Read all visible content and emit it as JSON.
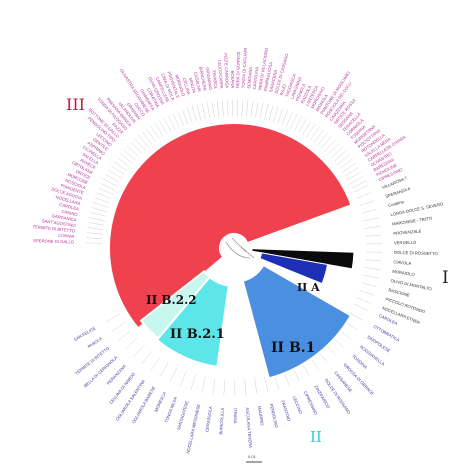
{
  "clades": {
    "III": {
      "label": "III",
      "color": "#c41e3a"
    },
    "I": {
      "label": "I",
      "color": "#222222"
    },
    "II": {
      "label": "II",
      "color": "#3fc6d0"
    },
    "IIA": {
      "label": "II A",
      "color": "#1a2a8a"
    },
    "IIB1": {
      "label": "II B.1",
      "color": "#4a8fe0"
    },
    "IIB21": {
      "label": "II B.2.1",
      "color": "#5de6ea"
    },
    "IIB22": {
      "label": "II B.2.2",
      "color": "#c7f7ee"
    },
    "red_fill": "#f0424e",
    "black_fill": "#0a0a0a",
    "blue_dark_fill": "#1c2fb5"
  },
  "leaf_labels": {
    "I": [
      "VILLAROSA 7",
      "SPERANZA 6",
      "Coratina",
      "LONGA DOLCE S. SEVERO",
      "MARCHESE - TRITTI",
      "PROVENZALE",
      "VERDELLO",
      "DOLCE DI ROSSETTO",
      "CIAVOLA",
      "MORAIOLO",
      "OLIVO DI MONTALTO",
      "RASCIONE",
      "PICCOLO ROTONDO",
      "NOCELLARA ETNEA"
    ],
    "II": [
      "CAROLEA",
      "OTTOBRATICA",
      "SINOPOLESE",
      "ROGGIANELLA",
      "TONDINA",
      "GROSSA DI GERACE",
      "CASSANESE",
      "DOLCE DI ROSSANO",
      "ZINZIFARICO",
      "CIPRESSINO",
      "LECCINO",
      "FRANTOIO",
      "PENDOLINO",
      "MAURINO",
      "ASCOLANA TENERA",
      "ITRANA",
      "BIANCOLILLA",
      "CERASUOLA",
      "NOCELLARA MESSINESE",
      "SANTAGATESE",
      "TONDA IBLEA",
      "MORESCA",
      "OGLIAROLA BARESE",
      "OGLIAROLA SALENTINA",
      "CELLINA DI NARDO",
      "PERANZANA",
      "BELLA DI CERIGNOLA",
      "TERMITE DI BITETTO",
      "PASOLA",
      "SAN FELICE"
    ],
    "III": [
      "SPERONE DI GALLO",
      "CORNIA",
      "TERMITE DI BITETTO",
      "SANT'AGOSTINO",
      "GARGANICA",
      "CANINO",
      "CAROLEA",
      "NOCELLARA",
      "DOLCE AGOGIA",
      "PIANGENTE",
      "ROSCIOLA",
      "MORCONE",
      "ORTICE",
      "ORTOLANA",
      "RAVECE",
      "SALELLA",
      "CICINELLA",
      "ASPRINIO",
      "GENTILE",
      "LECCINO",
      "PENDOLINO TIPO",
      "BOTTONE DI GALLO",
      "RAZZA",
      "TONDA DI FILOGASO",
      "PAESANA BIANCA",
      "VALANOLIVA",
      "GRIGNAN",
      "CUCCO",
      "OLIVASTRA SEGGIANESE",
      "GIARRAFFA",
      "CORATINA",
      "OLIVA GROSSA",
      "CARPELLESE",
      "CIMA DI MOLA",
      "PROVENZALE",
      "MORAIOLO",
      "CELLINA",
      "MINUTA",
      "CASALIVA",
      "BIANCHERA",
      "GRIGNANO",
      "FAVAROL",
      "LEUCOCARPA",
      "PIZZ'E CARROGA",
      "BOSANA",
      "NERA DI GONNOS",
      "TONDA DI CAGLIARI",
      "SEMIDANA",
      "CARIOLINA",
      "NERA DI VILLACIDRO",
      "PAMPAGLIOSA",
      "SARACENA",
      "DOLCE DI CASSANO",
      "RAJO",
      "TAGGIASCA",
      "LAVAGNINA",
      "PIGNOLA",
      "RAZZOLA",
      "LANTESCA",
      "MORCHIAIO",
      "MIGNOLA",
      "PIANTONE DI MOGLIANO",
      "ROSCIOLA DEI COLLI",
      "CAIAZZANA",
      "ORTICE ROSSA",
      "SESSANA",
      "TENACELLA",
      "CORNIOLA",
      "TONDINA",
      "MURGETANA",
      "PISCIOTTANA",
      "ROTONDELLA",
      "SALELLA NERA",
      "CARPELLESE CHIARA",
      "OLIVASTRO",
      "BARESANA",
      "PICHOLINE",
      "CIPRESSINO"
    ]
  },
  "scale_label": "0.01"
}
